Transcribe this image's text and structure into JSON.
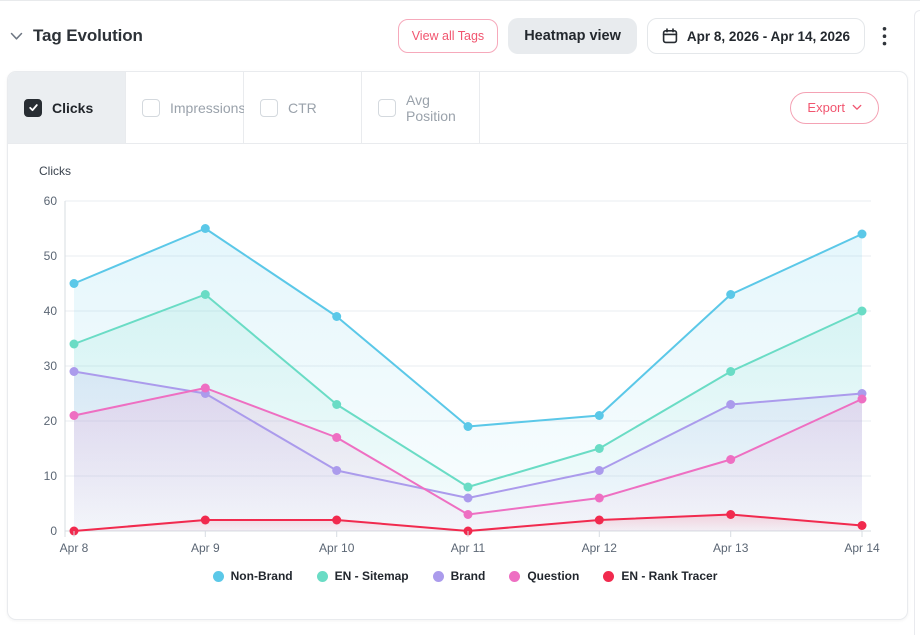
{
  "header": {
    "title": "Tag Evolution",
    "view_all_tags_label": "View all Tags",
    "heatmap_view_label": "Heatmap view",
    "date_range": "Apr 8, 2026 - Apr 14, 2026"
  },
  "tabs": [
    {
      "label": "Clicks",
      "checked": true
    },
    {
      "label": "Impressions",
      "checked": false
    },
    {
      "label": "CTR",
      "checked": false
    },
    {
      "label": "Avg Position",
      "checked": false
    }
  ],
  "export": {
    "label": "Export"
  },
  "colors": {
    "accent_pink": "#f1556f",
    "active_tab_bg": "#ebeef1",
    "grid": "#e9edf1",
    "axis": "#d7dce2"
  },
  "icons": {
    "collapse": "chevron-down-icon",
    "date": "calendar-icon",
    "menu": "kebab-menu-icon",
    "export": "chevron-down-icon",
    "tab_checked": "checkmark-icon"
  },
  "chart_data": {
    "type": "line",
    "title": "Tag Evolution - Clicks",
    "ylabel": "Clicks",
    "xlabel": "",
    "x": [
      "Apr 8",
      "Apr 9",
      "Apr 10",
      "Apr 11",
      "Apr 12",
      "Apr 13",
      "Apr 14"
    ],
    "series": [
      {
        "name": "Non-Brand",
        "color": "#5bc8e8",
        "values": [
          45,
          55,
          39,
          19,
          21,
          43,
          54
        ]
      },
      {
        "name": "EN - Sitemap",
        "color": "#6adcc5",
        "values": [
          34,
          43,
          23,
          8,
          15,
          29,
          40
        ]
      },
      {
        "name": "Brand",
        "color": "#ab9bec",
        "values": [
          29,
          25,
          11,
          6,
          11,
          23,
          25
        ]
      },
      {
        "name": "Question",
        "color": "#ee6fc2",
        "values": [
          21,
          26,
          17,
          3,
          6,
          13,
          24
        ]
      },
      {
        "name": "EN - Rank Tracer",
        "color": "#f12a4e",
        "values": [
          0,
          2,
          2,
          0,
          2,
          3,
          1
        ]
      }
    ],
    "ylim": [
      0,
      60
    ],
    "yticks": [
      0,
      10,
      20,
      30,
      40,
      50,
      60
    ],
    "grid": true,
    "area_fill": true,
    "legend_position": "bottom"
  }
}
